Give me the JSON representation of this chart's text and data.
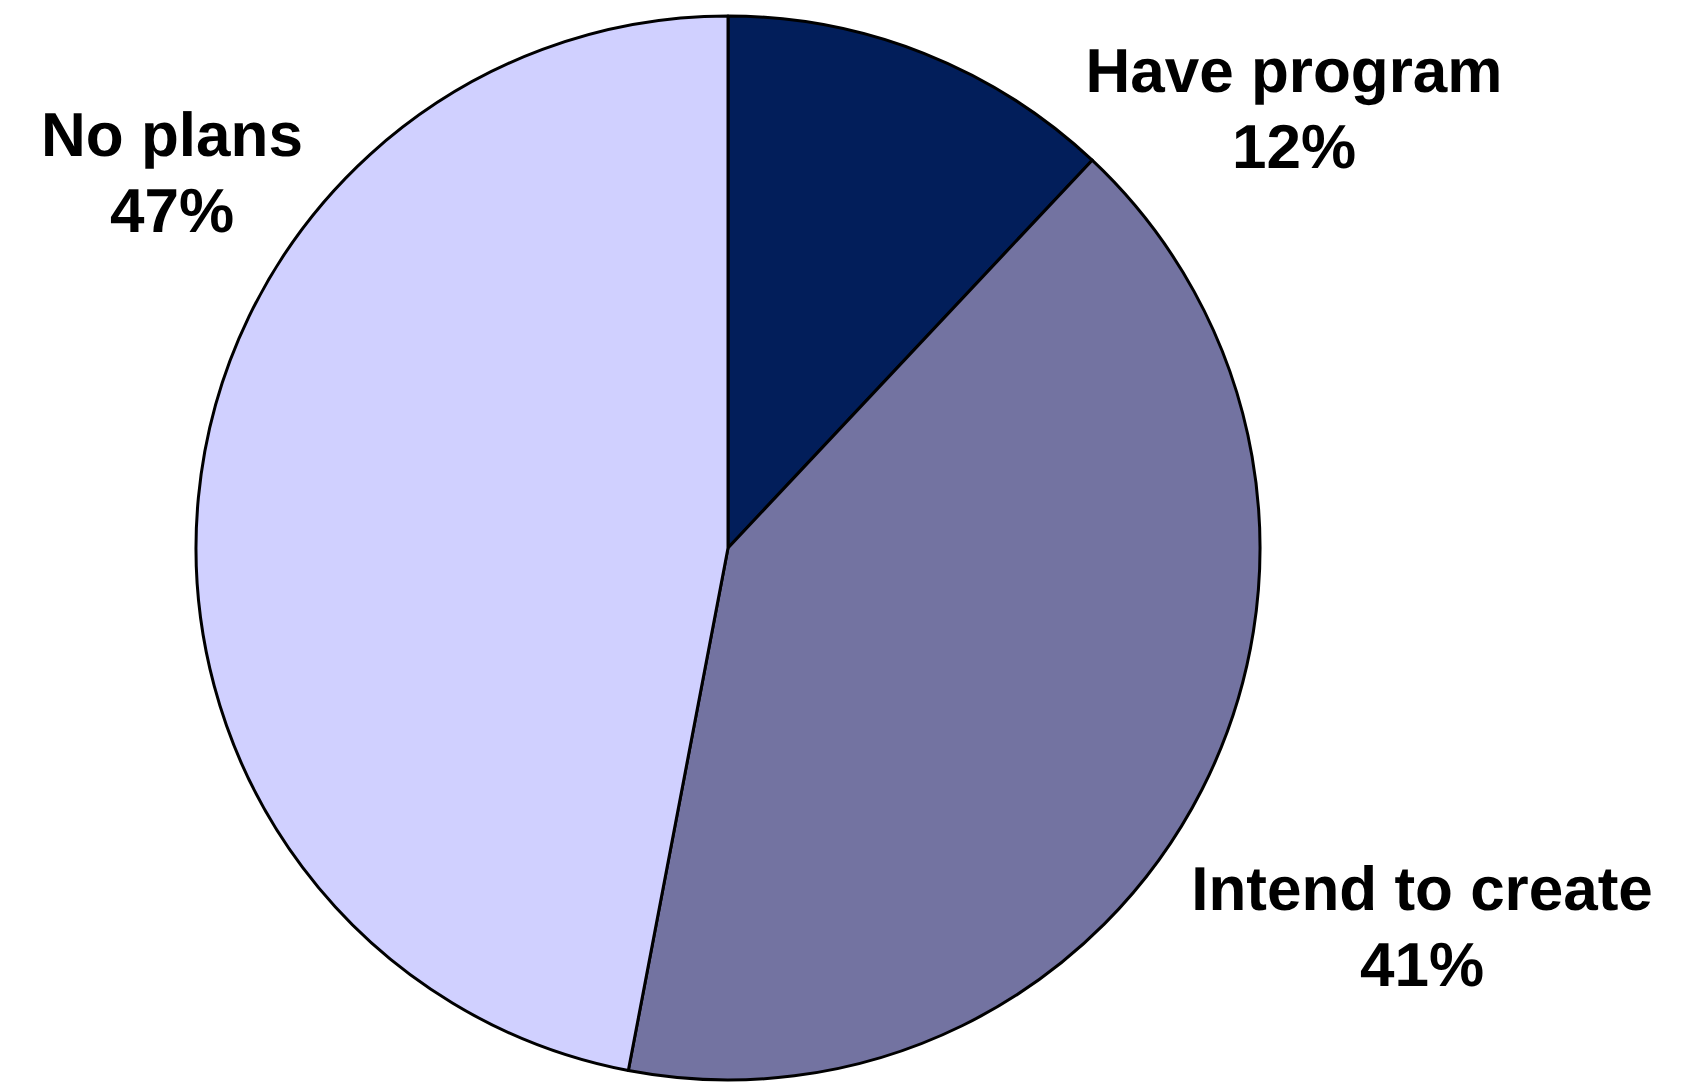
{
  "chart_data": {
    "type": "pie",
    "categories": [
      "Have program",
      "Intend to create",
      "No plans"
    ],
    "values": [
      12,
      41,
      47
    ],
    "value_labels": [
      "12%",
      "41%",
      "47%"
    ],
    "colors": [
      "#021e5a",
      "#7373a1",
      "#d0d0ff"
    ]
  }
}
